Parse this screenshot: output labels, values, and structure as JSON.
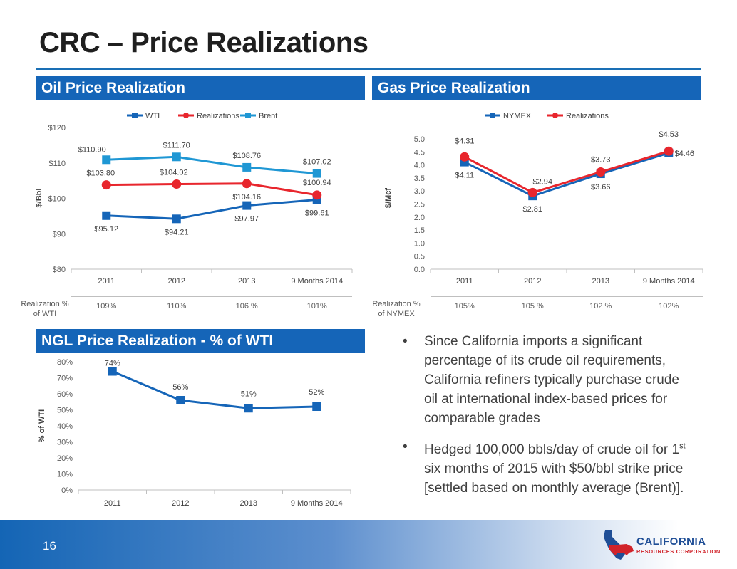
{
  "page": {
    "title": "CRC – Price Realizations",
    "page_number": "16"
  },
  "logo": {
    "line1": "CALIFORNIA",
    "line2": "RESOURCES CORPORATION"
  },
  "colors": {
    "header_bg": "#1565b8",
    "wti": "#1565b8",
    "realizations": "#e8262d",
    "brent": "#1f97d4"
  },
  "oil": {
    "header": "Oil Price Realization",
    "realization_label_1": "Realization %",
    "realization_label_2": "of WTI",
    "realization_values": [
      "109%",
      "110%",
      "106 %",
      "101%"
    ]
  },
  "gas": {
    "header": "Gas Price Realization",
    "realization_label_1": "Realization %",
    "realization_label_2": "of NYMEX",
    "realization_values": [
      "105%",
      "105 %",
      "102 %",
      "102%"
    ]
  },
  "ngl": {
    "header": "NGL Price Realization - % of WTI"
  },
  "bullets": {
    "b1": "Since California imports a significant percentage of its crude oil requirements, California refiners typically purchase crude oil at international index-based prices for comparable grades",
    "b2_pre": "Hedged 100,000 bbls/day  of crude oil for 1",
    "b2_sup": "st",
    "b2_post": " six months of 2015 with $50/bbl strike price [settled based on monthly average (Brent)]."
  },
  "chart_data": [
    {
      "id": "oil",
      "type": "line",
      "categories": [
        "2011",
        "2012",
        "2013",
        "9 Months 2014"
      ],
      "series": [
        {
          "name": "WTI",
          "values": [
            95.12,
            94.21,
            97.97,
            99.61
          ],
          "labels": [
            "$95.12",
            "$94.21",
            "$97.97",
            "$99.61"
          ],
          "color": "#1565b8",
          "marker": "square"
        },
        {
          "name": "Realizations",
          "values": [
            103.8,
            104.02,
            104.16,
            100.94
          ],
          "labels": [
            "$103.80",
            "$104.02",
            "$104.16",
            "$100.94"
          ],
          "color": "#e8262d",
          "marker": "circle"
        },
        {
          "name": "Brent",
          "values": [
            110.9,
            111.7,
            108.76,
            107.02
          ],
          "labels": [
            "$110.90",
            "$111.70",
            "$108.76",
            "$107.02"
          ],
          "color": "#1f97d4",
          "marker": "square"
        }
      ],
      "ylabel": "$/Bbl",
      "ylim": [
        80,
        120
      ],
      "yticks": [
        80,
        90,
        100,
        110,
        120
      ],
      "ytick_labels": [
        "$80",
        "$90",
        "$100",
        "$110",
        "$120"
      ],
      "legend": "top-center"
    },
    {
      "id": "gas",
      "type": "line",
      "categories": [
        "2011",
        "2012",
        "2013",
        "9 Months 2014"
      ],
      "series": [
        {
          "name": "NYMEX",
          "values": [
            4.11,
            2.81,
            3.66,
            4.46
          ],
          "labels": [
            "$4.11",
            "$2.81",
            "$3.66",
            "$4.46"
          ],
          "color": "#1565b8",
          "marker": "square"
        },
        {
          "name": "Realizations",
          "values": [
            4.31,
            2.94,
            3.73,
            4.53
          ],
          "labels": [
            "$4.31",
            "$2.94",
            "$3.73",
            "$4.53"
          ],
          "color": "#e8262d",
          "marker": "circle"
        }
      ],
      "ylabel": "$/Mcf",
      "ylim": [
        0,
        5
      ],
      "yticks": [
        0,
        0.5,
        1,
        1.5,
        2,
        2.5,
        3,
        3.5,
        4,
        4.5,
        5
      ],
      "ytick_labels": [
        "0.0",
        "0.5",
        "1.0",
        "1.5",
        "2.0",
        "2.5",
        "3.0",
        "3.5",
        "4.0",
        "4.5",
        "5.0"
      ],
      "legend": "top-center"
    },
    {
      "id": "ngl",
      "type": "line",
      "categories": [
        "2011",
        "2012",
        "2013",
        "9 Months 2014"
      ],
      "series": [
        {
          "name": "NGL % of WTI",
          "values": [
            74,
            56,
            51,
            52
          ],
          "labels": [
            "74%",
            "56%",
            "51%",
            "52%"
          ],
          "color": "#1565b8",
          "marker": "square"
        }
      ],
      "ylabel": "% of WTI",
      "ylim": [
        0,
        80
      ],
      "yticks": [
        0,
        10,
        20,
        30,
        40,
        50,
        60,
        70,
        80
      ],
      "ytick_labels": [
        "0%",
        "10%",
        "20%",
        "30%",
        "40%",
        "50%",
        "60%",
        "70%",
        "80%"
      ],
      "legend": "none"
    }
  ]
}
